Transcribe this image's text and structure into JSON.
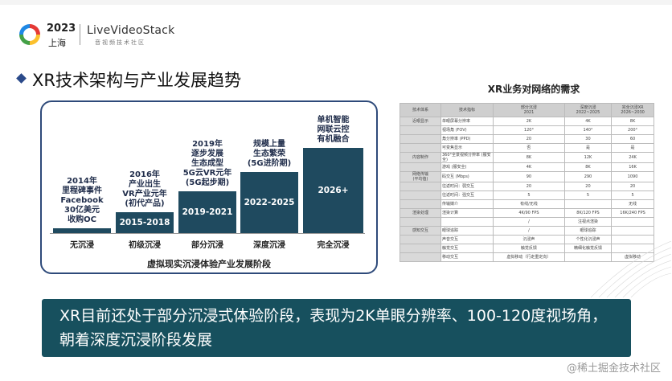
{
  "logo": {
    "year": "2023",
    "city": "上海",
    "brand": "LiveVideoStack",
    "brand_sub": "音视频技术社区"
  },
  "title": "XR技术架构与产业发展趋势",
  "timeline": {
    "stages": [
      {
        "top": "2014年\n里程碑事件\nFacebook\n30亿美元\n收购OC",
        "bar": "",
        "name": "无沉浸"
      },
      {
        "top": "2016年\n产业出生\nVR产业元年\n(初代产品)",
        "bar": "2015-2018",
        "name": "初级沉浸"
      },
      {
        "top": "2019年\n逐步发展\n生态成型\n5G云VR元年\n(5G起步期)",
        "bar": "2019-2021",
        "name": "部分沉浸"
      },
      {
        "top": "规模上量\n生态繁荣\n(5G进阶期)",
        "bar": "2022-2025",
        "name": "深度沉浸"
      },
      {
        "top": "单机智能\n网联云控\n有机融合",
        "bar": "2026+",
        "name": "完全沉浸"
      }
    ],
    "caption": "虚拟现实沉浸体验产业发展阶段"
  },
  "network": {
    "title": "XR业务对网络的需求",
    "headers": [
      "技术体系",
      "技术指标",
      "部分沉浸\n2021",
      "深度沉浸\n2022~2025",
      "完全沉浸XR\n2026~2030"
    ],
    "rows": [
      [
        "近眼显示",
        "单眼屏幕分辨率",
        "2K",
        "4K",
        "8K"
      ],
      [
        "",
        "视场角 (FOV)",
        "120°",
        "140°",
        "200°"
      ],
      [
        "",
        "角分辨率 (PPD)",
        "20",
        "30",
        "60"
      ],
      [
        "",
        "可变焦显示",
        "否",
        "是",
        "是"
      ],
      [
        "内容制作",
        "360°全景视频分辨率 (服安全)",
        "8K",
        "12K",
        "24K"
      ],
      [
        "",
        "游戏 (服安全)",
        "4K",
        "8K",
        "16K"
      ],
      [
        "网络传输\n(平均值)",
        "码交互 (Mbps)",
        "90",
        "290",
        "1090"
      ],
      [
        "",
        "往返时间：弱交互",
        "20",
        "20",
        "20"
      ],
      [
        "",
        "往返时间：强交互",
        "5",
        "5",
        "5"
      ],
      [
        "",
        "传输媒介",
        "有线/无线",
        "",
        "无线"
      ],
      [
        "渲染处理",
        "渲染计算",
        "4K/90 FPS",
        "8K/120 FPS",
        "16K/240 FPS"
      ],
      [
        "",
        "",
        "/",
        "注视点渲染",
        ""
      ],
      [
        "感知交互",
        "眼球追踪",
        "/",
        "眼球追踪",
        ""
      ],
      [
        "",
        "声音交互",
        "沉浸声",
        "个性化沉浸声",
        ""
      ],
      [
        "",
        "触觉交互",
        "触觉反馈",
        "精细化触觉反馈",
        ""
      ],
      [
        "",
        "移动交互",
        "虚拟移动（行走重定向）",
        "",
        "虚拟移动"
      ]
    ]
  },
  "banner": "XR目前还处于部分沉浸式体验阶段，表现为2K单眼分辨率、100-120度视场角，朝着深度沉浸阶段发展",
  "watermark": "@稀土掘金技术社区"
}
